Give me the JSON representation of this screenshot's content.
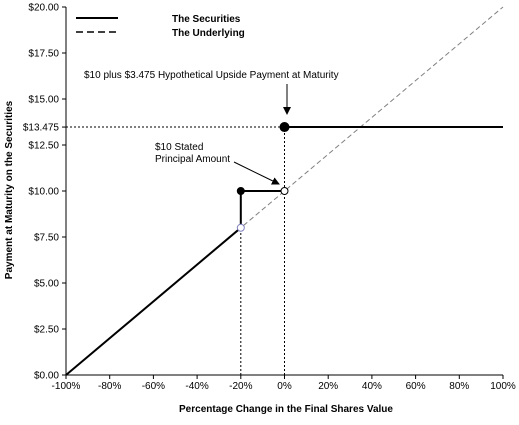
{
  "chart_data": {
    "type": "line",
    "xlabel": "Percentage Change in the Final Shares Value",
    "ylabel": "Payment at Maturity on the Securities",
    "xlim": [
      -100,
      100
    ],
    "ylim": [
      0,
      20
    ],
    "x_ticks": [
      -100,
      -80,
      -60,
      -40,
      -20,
      0,
      20,
      40,
      60,
      80,
      100
    ],
    "x_tick_labels": [
      "-100%",
      "-80%",
      "-60%",
      "-40%",
      "-20%",
      "0%",
      "20%",
      "40%",
      "60%",
      "80%",
      "100%"
    ],
    "y_ticks": [
      0,
      2.5,
      5,
      7.5,
      10,
      12.5,
      13.475,
      15,
      17.5,
      20
    ],
    "y_tick_labels": [
      "$0.00",
      "$2.50",
      "$5.00",
      "$7.50",
      "$10.00",
      "$12.50",
      "$13.475",
      "$15.00",
      "$17.50",
      "$20.00"
    ],
    "legend": {
      "position": "top-left",
      "entries": [
        {
          "label": "The Securities",
          "style": "solid"
        },
        {
          "label": "The Underlying",
          "style": "dashed"
        }
      ]
    },
    "series": [
      {
        "name": "The Securities",
        "style": "solid",
        "color": "#000000",
        "segments": [
          {
            "x": [
              -100,
              -20
            ],
            "y": [
              0,
              8
            ]
          },
          {
            "x": [
              -20,
              -20
            ],
            "y": [
              8,
              10
            ]
          },
          {
            "x": [
              -20,
              0
            ],
            "y": [
              10,
              10
            ]
          },
          {
            "x": [
              0,
              100
            ],
            "y": [
              13.475,
              13.475
            ]
          }
        ]
      },
      {
        "name": "The Underlying",
        "style": "dashed",
        "color": "#808080",
        "segments": [
          {
            "x": [
              -100,
              100
            ],
            "y": [
              0,
              20
            ]
          }
        ]
      }
    ],
    "markers": [
      {
        "x": -20,
        "y": 10,
        "fill": "#000000"
      },
      {
        "x": -20,
        "y": 8,
        "fill": "#ffffff",
        "stroke": "#8080c0"
      },
      {
        "x": 0,
        "y": 13.475,
        "fill": "#000000"
      },
      {
        "x": 0,
        "y": 10,
        "fill": "#ffffff",
        "stroke": "#000000"
      }
    ],
    "reference_lines": [
      {
        "type": "vertical",
        "x": -20,
        "y_to": 10
      },
      {
        "type": "vertical",
        "x": 0,
        "y_to": 13.475
      },
      {
        "type": "horizontal",
        "y": 13.475,
        "x_to": 0
      }
    ],
    "annotations": [
      {
        "lines": [
          "$10 plus $3.475 Hypothetical Upside Payment at Maturity"
        ],
        "target": {
          "x": 0,
          "y": 13.475
        }
      },
      {
        "lines": [
          "$10 Stated",
          "Principal Amount"
        ],
        "target": {
          "x": 0,
          "y": 10
        }
      }
    ]
  }
}
